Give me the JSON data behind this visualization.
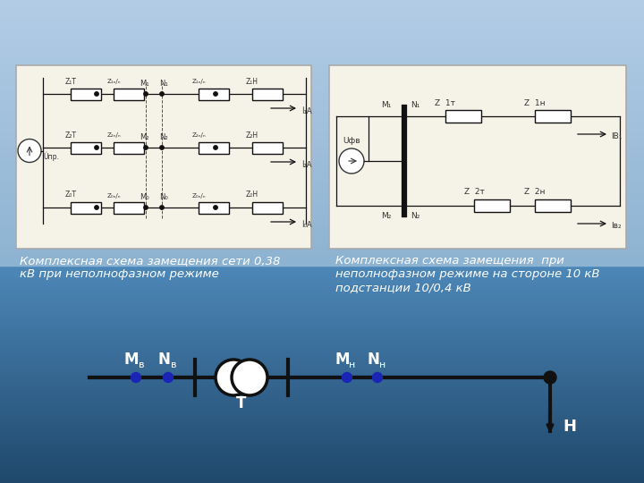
{
  "left_caption": "Комплексная схема замещения сети 0,38\nкВ при неполнофазном режиме",
  "right_caption": "Комплексная схема замещения  при\nнеполнофазном режиме на стороне 10 кВ\nподстанции 10/0,4 кВ",
  "caption_color": "#ffffff",
  "caption_fontsize": 9.5,
  "bottom_label_T": "T",
  "bottom_label_H": "H",
  "panel_rows": [
    [
      "Z₁T",
      "Z₁ₙ/ₙ",
      "M₁",
      "N₁",
      "Z₁ₙ/ₙ",
      "Z₁H",
      "İ₁A"
    ],
    [
      "Z₂T",
      "Z₂ₙ/ₙ",
      "M₂",
      "N₂",
      "Z₂ₙ/ₙ",
      "Z₂H",
      "İ₂A"
    ],
    [
      "Z₀T",
      "Z₀ₙ/ₙ",
      "M₀",
      "N₀",
      "Z₀ₙ/ₙ",
      "Z₀H",
      "İ₀A"
    ]
  ]
}
